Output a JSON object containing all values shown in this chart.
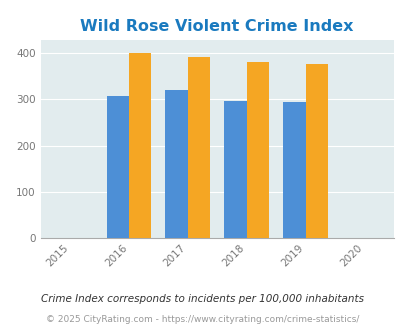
{
  "title": "Wild Rose Violent Crime Index",
  "title_color": "#1a7abf",
  "years": [
    2015,
    2016,
    2017,
    2018,
    2019,
    2020
  ],
  "bar_years": [
    2016,
    2017,
    2018,
    2019
  ],
  "wild_rose": [
    0,
    0,
    0,
    0
  ],
  "wisconsin": [
    307,
    320,
    296,
    294
  ],
  "national": [
    400,
    393,
    382,
    378
  ],
  "wild_rose_color": "#88c540",
  "wisconsin_color": "#4d8fd6",
  "national_color": "#f5a623",
  "plot_bg": "#e2ecee",
  "ylim": [
    0,
    430
  ],
  "yticks": [
    0,
    100,
    200,
    300,
    400
  ],
  "footnote1": "Crime Index corresponds to incidents per 100,000 inhabitants",
  "footnote2": "© 2025 CityRating.com - https://www.cityrating.com/crime-statistics/",
  "footnote1_color": "#333333",
  "footnote2_color": "#999999",
  "bar_width": 0.38
}
